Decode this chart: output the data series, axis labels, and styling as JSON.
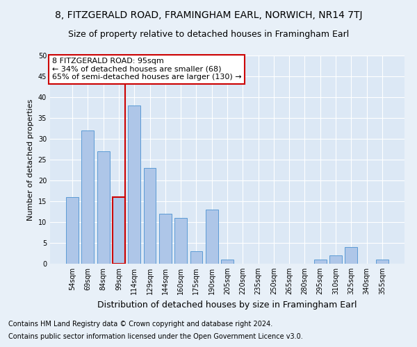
{
  "title": "8, FITZGERALD ROAD, FRAMINGHAM EARL, NORWICH, NR14 7TJ",
  "subtitle": "Size of property relative to detached houses in Framingham Earl",
  "xlabel": "Distribution of detached houses by size in Framingham Earl",
  "ylabel": "Number of detached properties",
  "footnote1": "Contains HM Land Registry data © Crown copyright and database right 2024.",
  "footnote2": "Contains public sector information licensed under the Open Government Licence v3.0.",
  "categories": [
    "54sqm",
    "69sqm",
    "84sqm",
    "99sqm",
    "114sqm",
    "129sqm",
    "144sqm",
    "160sqm",
    "175sqm",
    "190sqm",
    "205sqm",
    "220sqm",
    "235sqm",
    "250sqm",
    "265sqm",
    "280sqm",
    "295sqm",
    "310sqm",
    "325sqm",
    "340sqm",
    "355sqm"
  ],
  "values": [
    16,
    32,
    27,
    16,
    38,
    23,
    12,
    11,
    3,
    13,
    1,
    0,
    0,
    0,
    0,
    0,
    1,
    2,
    4,
    0,
    1
  ],
  "bar_color": "#aec6e8",
  "bar_edge_color": "#5b9bd5",
  "highlight_bar_index": 3,
  "vline_color": "#cc0000",
  "annotation_text": "8 FITZGERALD ROAD: 95sqm\n← 34% of detached houses are smaller (68)\n65% of semi-detached houses are larger (130) →",
  "annotation_box_color": "#ffffff",
  "annotation_box_edge_color": "#cc0000",
  "ylim": [
    0,
    50
  ],
  "yticks": [
    0,
    5,
    10,
    15,
    20,
    25,
    30,
    35,
    40,
    45,
    50
  ],
  "background_color": "#e8f0f8",
  "axes_background_color": "#dce8f5",
  "title_fontsize": 10,
  "subtitle_fontsize": 9,
  "ylabel_fontsize": 8,
  "xlabel_fontsize": 9,
  "tick_fontsize": 7,
  "annotation_fontsize": 8,
  "footnote_fontsize": 7
}
